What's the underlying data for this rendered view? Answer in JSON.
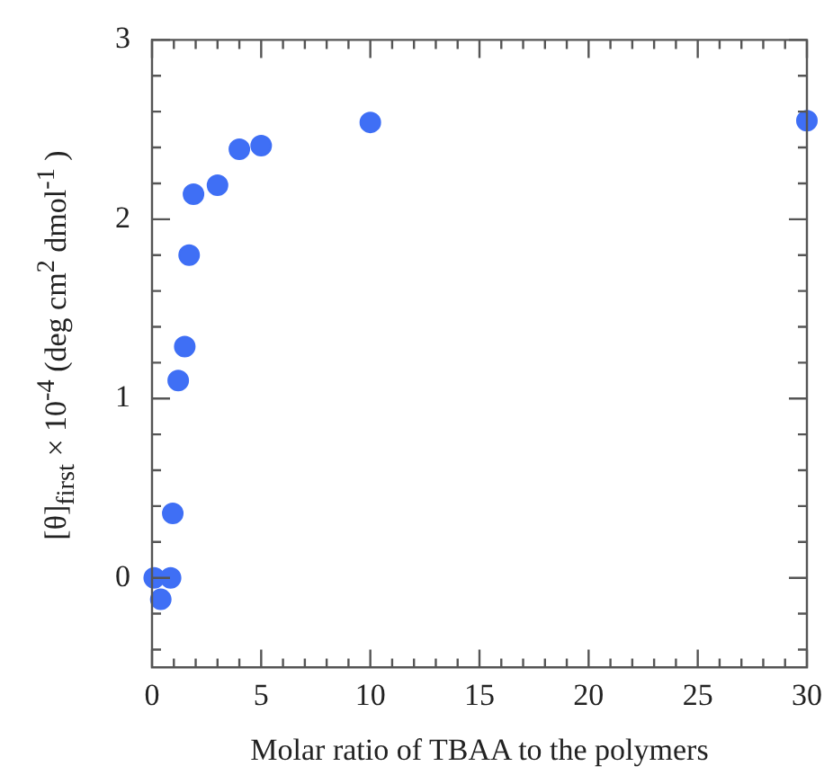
{
  "chart_data": {
    "type": "scatter",
    "xlabel": "Molar ratio of TBAA to the polymers",
    "ylabel": "[θ]$_{first}$ × 10$^{-4}$ (deg cm$^{2}$ dmol$^{-1}$ )",
    "x": [
      0.1,
      0.85,
      0.4,
      0.95,
      1.2,
      1.5,
      1.7,
      1.9,
      3,
      4,
      5,
      10,
      30
    ],
    "values": [
      0,
      0,
      -0.12,
      0.36,
      1.1,
      1.29,
      1.8,
      2.14,
      2.19,
      2.39,
      2.41,
      2.54,
      2.55
    ],
    "color": "#3f6ff5",
    "marker": "circle",
    "grid": false,
    "legend": false,
    "xlim": [
      0,
      30
    ],
    "ylim": [
      -0.5,
      3
    ],
    "xticks": [
      0,
      {
        "value": 1,
        "label": null
      },
      {
        "value": 2,
        "label": null
      },
      {
        "value": 3,
        "label": null
      },
      {
        "value": 4,
        "label": null
      },
      5,
      {
        "value": 6,
        "label": null
      },
      {
        "value": 7,
        "label": null
      },
      {
        "value": 8,
        "label": null
      },
      {
        "value": 9,
        "label": null
      },
      10,
      {
        "value": 11,
        "label": null
      },
      {
        "value": 12,
        "label": null
      },
      {
        "value": 13,
        "label": null
      },
      {
        "value": 14,
        "label": null
      },
      15,
      {
        "value": 16,
        "label": null
      },
      {
        "value": 17,
        "label": null
      },
      {
        "value": 18,
        "label": null
      },
      {
        "value": 19,
        "label": null
      },
      20,
      {
        "value": 21,
        "label": null
      },
      {
        "value": 22,
        "label": null
      },
      {
        "value": 23,
        "label": null
      },
      {
        "value": 24,
        "label": null
      },
      25,
      {
        "value": 26,
        "label": null
      },
      {
        "value": 27,
        "label": null
      },
      {
        "value": 28,
        "label": null
      },
      {
        "value": 29,
        "label": null
      },
      30
    ],
    "yticks": [
      {
        "value": -0.4,
        "label": null
      },
      {
        "value": -0.2,
        "label": null
      },
      0,
      {
        "value": 0.2,
        "label": null
      },
      {
        "value": 0.4,
        "label": null
      },
      {
        "value": 0.6,
        "label": null
      },
      {
        "value": 0.8,
        "label": null
      },
      1,
      {
        "value": 1.2,
        "label": null
      },
      {
        "value": 1.4,
        "label": null
      },
      {
        "value": 1.6,
        "label": null
      },
      {
        "value": 1.8,
        "label": null
      },
      2,
      {
        "value": 2.2,
        "label": null
      },
      {
        "value": 2.4,
        "label": null
      },
      {
        "value": 2.6,
        "label": null
      },
      {
        "value": 2.8,
        "label": null
      },
      3
    ]
  }
}
